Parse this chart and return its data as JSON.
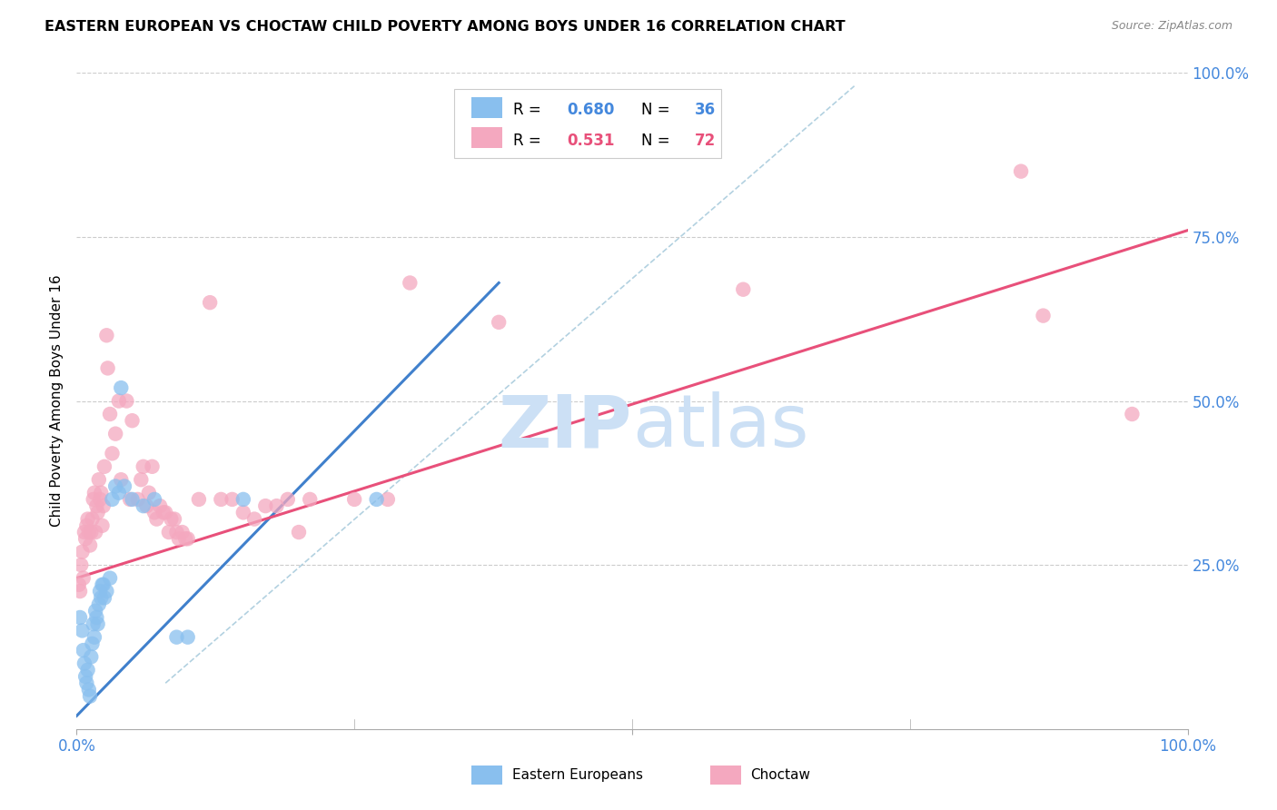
{
  "title": "EASTERN EUROPEAN VS CHOCTAW CHILD POVERTY AMONG BOYS UNDER 16 CORRELATION CHART",
  "source": "Source: ZipAtlas.com",
  "ylabel": "Child Poverty Among Boys Under 16",
  "xlim": [
    0,
    1
  ],
  "ylim": [
    0,
    1
  ],
  "xtick_positions": [
    0.0,
    0.5,
    1.0
  ],
  "xtick_labels": [
    "0.0%",
    "",
    "100.0%"
  ],
  "ytick_positions": [
    0.25,
    0.5,
    0.75,
    1.0
  ],
  "ytick_labels": [
    "25.0%",
    "50.0%",
    "75.0%",
    "100.0%"
  ],
  "background_color": "#ffffff",
  "watermark_zip_color": "#cce0f5",
  "watermark_atlas_color": "#cce0f5",
  "blue_color": "#89bfee",
  "pink_color": "#f4a8bf",
  "blue_line_color": "#4080cc",
  "pink_line_color": "#e8507a",
  "diag_color": "#aaccdd",
  "right_tick_color": "#4488dd",
  "xtick_color": "#4488dd",
  "grid_color": "#cccccc",
  "blue_scatter": [
    [
      0.003,
      0.17
    ],
    [
      0.005,
      0.15
    ],
    [
      0.006,
      0.12
    ],
    [
      0.007,
      0.1
    ],
    [
      0.008,
      0.08
    ],
    [
      0.009,
      0.07
    ],
    [
      0.01,
      0.09
    ],
    [
      0.011,
      0.06
    ],
    [
      0.012,
      0.05
    ],
    [
      0.013,
      0.11
    ],
    [
      0.014,
      0.13
    ],
    [
      0.015,
      0.16
    ],
    [
      0.016,
      0.14
    ],
    [
      0.017,
      0.18
    ],
    [
      0.018,
      0.17
    ],
    [
      0.019,
      0.16
    ],
    [
      0.02,
      0.19
    ],
    [
      0.021,
      0.21
    ],
    [
      0.022,
      0.2
    ],
    [
      0.023,
      0.22
    ],
    [
      0.024,
      0.22
    ],
    [
      0.025,
      0.2
    ],
    [
      0.027,
      0.21
    ],
    [
      0.03,
      0.23
    ],
    [
      0.032,
      0.35
    ],
    [
      0.035,
      0.37
    ],
    [
      0.038,
      0.36
    ],
    [
      0.04,
      0.52
    ],
    [
      0.043,
      0.37
    ],
    [
      0.05,
      0.35
    ],
    [
      0.06,
      0.34
    ],
    [
      0.07,
      0.35
    ],
    [
      0.09,
      0.14
    ],
    [
      0.1,
      0.14
    ],
    [
      0.15,
      0.35
    ],
    [
      0.27,
      0.35
    ]
  ],
  "pink_scatter": [
    [
      0.002,
      0.22
    ],
    [
      0.003,
      0.21
    ],
    [
      0.004,
      0.25
    ],
    [
      0.005,
      0.27
    ],
    [
      0.006,
      0.23
    ],
    [
      0.007,
      0.3
    ],
    [
      0.008,
      0.29
    ],
    [
      0.009,
      0.31
    ],
    [
      0.01,
      0.32
    ],
    [
      0.011,
      0.3
    ],
    [
      0.012,
      0.28
    ],
    [
      0.013,
      0.3
    ],
    [
      0.014,
      0.32
    ],
    [
      0.015,
      0.35
    ],
    [
      0.016,
      0.36
    ],
    [
      0.017,
      0.3
    ],
    [
      0.018,
      0.34
    ],
    [
      0.019,
      0.33
    ],
    [
      0.02,
      0.38
    ],
    [
      0.021,
      0.35
    ],
    [
      0.022,
      0.36
    ],
    [
      0.023,
      0.31
    ],
    [
      0.024,
      0.34
    ],
    [
      0.025,
      0.4
    ],
    [
      0.027,
      0.6
    ],
    [
      0.028,
      0.55
    ],
    [
      0.03,
      0.48
    ],
    [
      0.032,
      0.42
    ],
    [
      0.035,
      0.45
    ],
    [
      0.038,
      0.5
    ],
    [
      0.04,
      0.38
    ],
    [
      0.045,
      0.5
    ],
    [
      0.048,
      0.35
    ],
    [
      0.05,
      0.47
    ],
    [
      0.055,
      0.35
    ],
    [
      0.058,
      0.38
    ],
    [
      0.06,
      0.4
    ],
    [
      0.063,
      0.34
    ],
    [
      0.065,
      0.36
    ],
    [
      0.068,
      0.4
    ],
    [
      0.07,
      0.33
    ],
    [
      0.072,
      0.32
    ],
    [
      0.075,
      0.34
    ],
    [
      0.078,
      0.33
    ],
    [
      0.08,
      0.33
    ],
    [
      0.083,
      0.3
    ],
    [
      0.085,
      0.32
    ],
    [
      0.088,
      0.32
    ],
    [
      0.09,
      0.3
    ],
    [
      0.092,
      0.29
    ],
    [
      0.095,
      0.3
    ],
    [
      0.098,
      0.29
    ],
    [
      0.1,
      0.29
    ],
    [
      0.11,
      0.35
    ],
    [
      0.12,
      0.65
    ],
    [
      0.13,
      0.35
    ],
    [
      0.14,
      0.35
    ],
    [
      0.15,
      0.33
    ],
    [
      0.16,
      0.32
    ],
    [
      0.17,
      0.34
    ],
    [
      0.18,
      0.34
    ],
    [
      0.19,
      0.35
    ],
    [
      0.2,
      0.3
    ],
    [
      0.21,
      0.35
    ],
    [
      0.25,
      0.35
    ],
    [
      0.28,
      0.35
    ],
    [
      0.3,
      0.68
    ],
    [
      0.38,
      0.62
    ],
    [
      0.6,
      0.67
    ],
    [
      0.85,
      0.85
    ],
    [
      0.87,
      0.63
    ],
    [
      0.95,
      0.48
    ]
  ],
  "blue_line_x": [
    0.0,
    0.38
  ],
  "blue_line_y": [
    0.02,
    0.68
  ],
  "pink_line_x": [
    0.0,
    1.0
  ],
  "pink_line_y": [
    0.23,
    0.76
  ],
  "diag_line_x": [
    0.08,
    0.7
  ],
  "diag_line_y": [
    0.07,
    0.98
  ]
}
